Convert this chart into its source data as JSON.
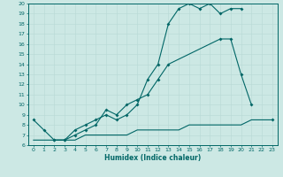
{
  "xlabel": "Humidex (Indice chaleur)",
  "xlim": [
    0,
    23
  ],
  "ylim": [
    6,
    20
  ],
  "yticks": [
    6,
    7,
    8,
    9,
    10,
    11,
    12,
    13,
    14,
    15,
    16,
    17,
    18,
    19,
    20
  ],
  "xticks": [
    0,
    1,
    2,
    3,
    4,
    5,
    6,
    7,
    8,
    9,
    10,
    11,
    12,
    13,
    14,
    15,
    16,
    17,
    18,
    19,
    20,
    21,
    22,
    23
  ],
  "bg_color": "#cce8e4",
  "line_color": "#006666",
  "grid_color_major": "#b0d8d2",
  "grid_color_minor": "#c8e8e0",
  "line_a_x": [
    0,
    1,
    2,
    3,
    4,
    5,
    6,
    7,
    8,
    9,
    10,
    11,
    12,
    13,
    14,
    15,
    16,
    17,
    18,
    19,
    20,
    22,
    23
  ],
  "line_a_y": [
    8.5,
    7.5,
    6.5,
    6.5,
    7.5,
    8.0,
    8.5,
    9.0,
    8.5,
    9.0,
    10.0,
    12.5,
    14.0,
    18.0,
    19.5,
    20.0,
    19.5,
    20.0,
    19.0,
    19.5,
    19.5,
    null,
    8.5
  ],
  "line_b_x": [
    2,
    3,
    4,
    5,
    6,
    7,
    8,
    9,
    10,
    11,
    12,
    13,
    18,
    19,
    20,
    21,
    22
  ],
  "line_b_y": [
    6.5,
    6.5,
    7.0,
    7.5,
    8.0,
    9.5,
    9.0,
    10.0,
    10.5,
    11.0,
    12.5,
    14.0,
    16.5,
    16.5,
    13.0,
    10.0,
    null
  ],
  "line_c_x": [
    0,
    1,
    2,
    3,
    4,
    5,
    6,
    7,
    8,
    9,
    10,
    11,
    12,
    13,
    14,
    15,
    16,
    17,
    18,
    19,
    20,
    21,
    22,
    23
  ],
  "line_c_y": [
    6.5,
    6.5,
    6.5,
    6.5,
    6.5,
    7.0,
    7.0,
    7.0,
    7.0,
    7.0,
    7.5,
    7.5,
    7.5,
    7.5,
    7.5,
    8.0,
    8.0,
    8.0,
    8.0,
    8.0,
    8.0,
    8.5,
    8.5,
    8.5
  ]
}
